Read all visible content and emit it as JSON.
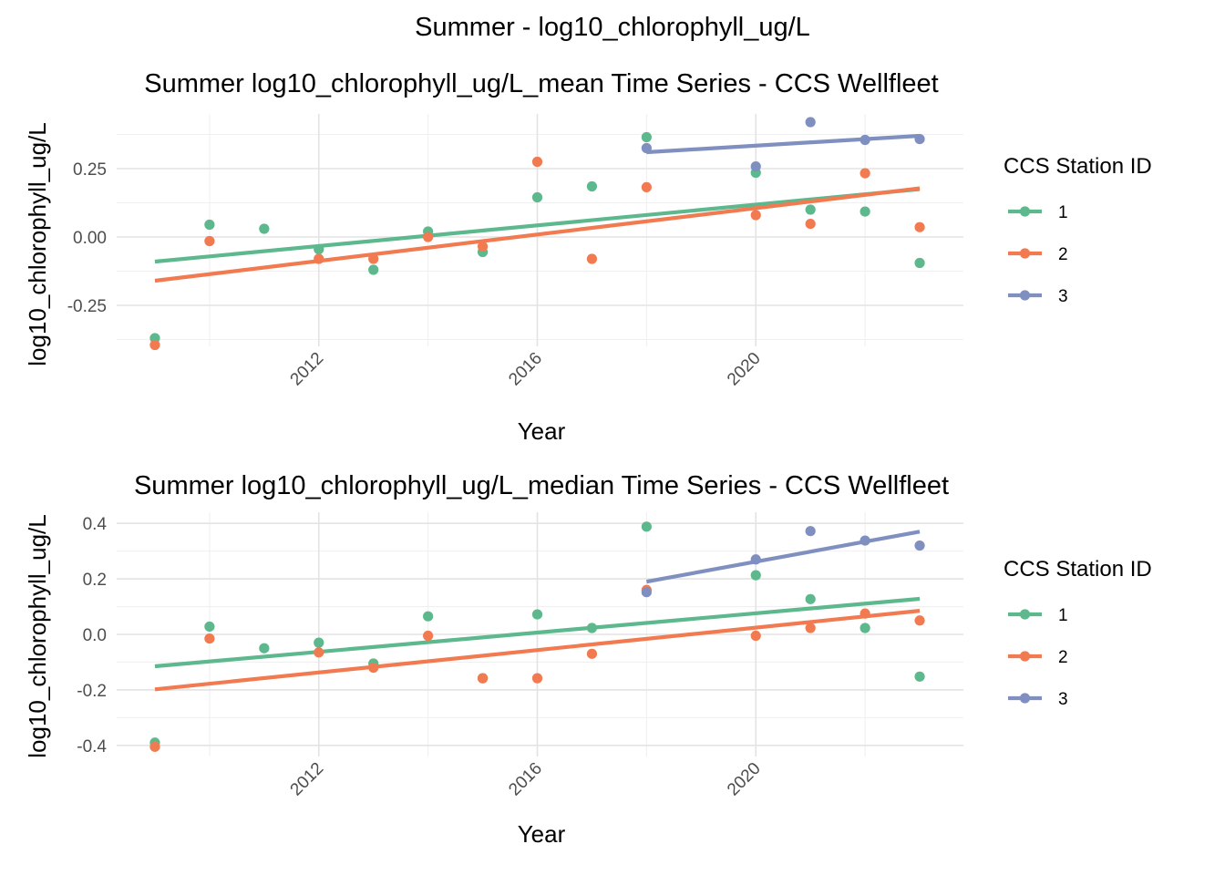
{
  "page_title": "Summer - log10_chlorophyll_ug/L",
  "colors": {
    "1": "#5db88e",
    "2": "#f27a50",
    "3": "#7f8fc0"
  },
  "chart_data": [
    {
      "type": "scatter",
      "title": "Summer log10_chlorophyll_ug/L_mean Time Series - CCS Wellfleet",
      "xlabel": "Year",
      "ylabel": "log10_chlorophyll_ug/L",
      "xlim": [
        2008.3,
        2023.8
      ],
      "ylim": [
        -0.4,
        0.45
      ],
      "xticks": [
        2012,
        2016,
        2020
      ],
      "xtick_labels": [
        "2012",
        "2016",
        "2020"
      ],
      "yticks": [
        -0.25,
        0,
        0.25
      ],
      "ytick_labels": [
        "-0.25",
        "0.00",
        "0.25"
      ],
      "grid": true,
      "legend": {
        "title": "CCS Station ID",
        "position": "right"
      },
      "series": [
        {
          "name": "1",
          "points": [
            [
              2009,
              -0.37
            ],
            [
              2010,
              0.045
            ],
            [
              2011,
              0.03
            ],
            [
              2012,
              -0.045
            ],
            [
              2013,
              -0.12
            ],
            [
              2014,
              0.02
            ],
            [
              2015,
              -0.055
            ],
            [
              2016,
              0.145
            ],
            [
              2017,
              0.185
            ],
            [
              2018,
              0.365
            ],
            [
              2020,
              0.235
            ],
            [
              2021,
              0.1
            ],
            [
              2022,
              0.093
            ],
            [
              2023,
              -0.095
            ]
          ],
          "trend": [
            [
              2009,
              -0.09
            ],
            [
              2023,
              0.175
            ]
          ]
        },
        {
          "name": "2",
          "points": [
            [
              2009,
              -0.395
            ],
            [
              2010,
              -0.015
            ],
            [
              2012,
              -0.08
            ],
            [
              2013,
              -0.08
            ],
            [
              2014,
              0.0
            ],
            [
              2015,
              -0.035
            ],
            [
              2016,
              0.275
            ],
            [
              2017,
              -0.08
            ],
            [
              2018,
              0.182
            ],
            [
              2020,
              0.08
            ],
            [
              2021,
              0.048
            ],
            [
              2022,
              0.233
            ],
            [
              2023,
              0.036
            ]
          ],
          "trend": [
            [
              2009,
              -0.16
            ],
            [
              2023,
              0.178
            ]
          ]
        },
        {
          "name": "3",
          "points": [
            [
              2018,
              0.325
            ],
            [
              2020,
              0.258
            ],
            [
              2021,
              0.42
            ],
            [
              2022,
              0.355
            ],
            [
              2023,
              0.358
            ]
          ],
          "trend": [
            [
              2018,
              0.31
            ],
            [
              2023,
              0.37
            ]
          ]
        }
      ]
    },
    {
      "type": "scatter",
      "title": "Summer log10_chlorophyll_ug/L_median Time Series - CCS Wellfleet",
      "xlabel": "Year",
      "ylabel": "log10_chlorophyll_ug/L",
      "xlim": [
        2008.3,
        2023.8
      ],
      "ylim": [
        -0.44,
        0.44
      ],
      "xticks": [
        2012,
        2016,
        2020
      ],
      "xtick_labels": [
        "2012",
        "2016",
        "2020"
      ],
      "yticks": [
        -0.4,
        -0.2,
        0,
        0.2,
        0.4
      ],
      "ytick_labels": [
        "-0.4",
        "-0.2",
        "0.0",
        "0.2",
        "0.4"
      ],
      "grid": true,
      "legend": {
        "title": "CCS Station ID",
        "position": "right"
      },
      "series": [
        {
          "name": "1",
          "points": [
            [
              2009,
              -0.39
            ],
            [
              2010,
              0.028
            ],
            [
              2011,
              -0.05
            ],
            [
              2012,
              -0.03
            ],
            [
              2013,
              -0.105
            ],
            [
              2014,
              0.065
            ],
            [
              2015,
              -0.158
            ],
            [
              2016,
              0.072
            ],
            [
              2017,
              0.023
            ],
            [
              2018,
              0.388
            ],
            [
              2020,
              0.213
            ],
            [
              2021,
              0.127
            ],
            [
              2022,
              0.023
            ],
            [
              2023,
              -0.152
            ]
          ],
          "trend": [
            [
              2009,
              -0.115
            ],
            [
              2023,
              0.128
            ]
          ]
        },
        {
          "name": "2",
          "points": [
            [
              2009,
              -0.405
            ],
            [
              2010,
              -0.015
            ],
            [
              2012,
              -0.065
            ],
            [
              2013,
              -0.12
            ],
            [
              2014,
              -0.005
            ],
            [
              2015,
              -0.158
            ],
            [
              2016,
              -0.158
            ],
            [
              2017,
              -0.07
            ],
            [
              2018,
              0.16
            ],
            [
              2020,
              -0.005
            ],
            [
              2021,
              0.023
            ],
            [
              2022,
              0.075
            ],
            [
              2023,
              0.05
            ]
          ],
          "trend": [
            [
              2009,
              -0.198
            ],
            [
              2023,
              0.085
            ]
          ]
        },
        {
          "name": "3",
          "points": [
            [
              2018,
              0.152
            ],
            [
              2020,
              0.27
            ],
            [
              2021,
              0.372
            ],
            [
              2022,
              0.338
            ],
            [
              2023,
              0.32
            ]
          ],
          "trend": [
            [
              2018,
              0.19
            ],
            [
              2023,
              0.37
            ]
          ]
        }
      ]
    }
  ]
}
